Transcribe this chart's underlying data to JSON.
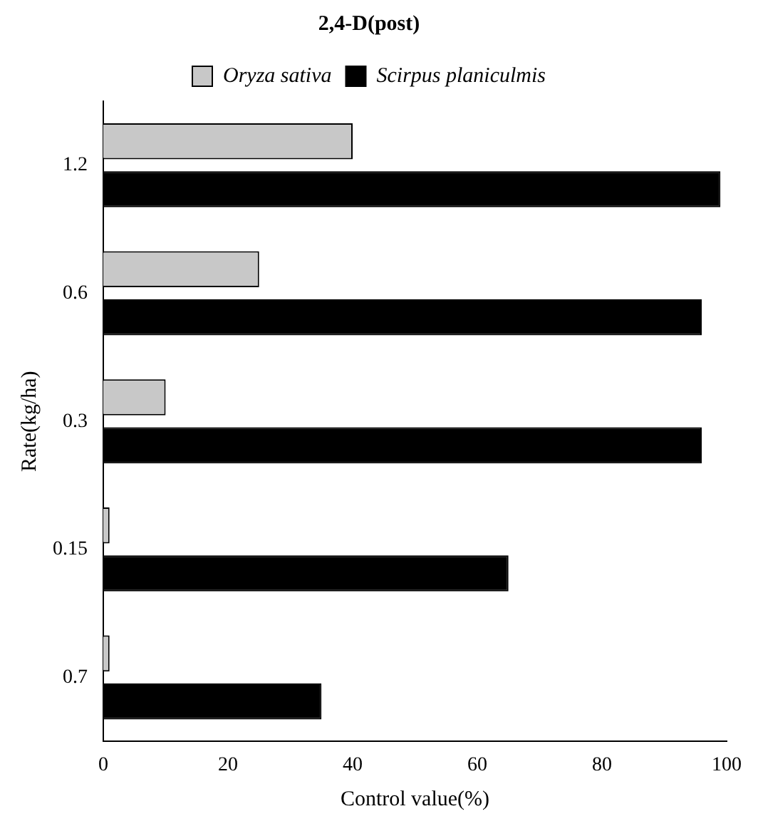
{
  "chart_data": {
    "type": "bar",
    "orientation": "horizontal",
    "title": "2,4-D(post)",
    "xlabel": "Control value(%)",
    "ylabel": "Rate(kg/ha)",
    "categories": [
      "1.2",
      "0.6",
      "0.3",
      "0.15",
      "0.7"
    ],
    "series": [
      {
        "name": "Oryza sativa",
        "color": "#c8c8c8",
        "values": [
          40,
          25,
          10,
          1,
          1
        ]
      },
      {
        "name": "Scirpus planiculmis",
        "color": "#000000",
        "values": [
          99,
          96,
          96,
          65,
          35
        ]
      }
    ],
    "xlim": [
      0,
      100
    ],
    "xticks": [
      0,
      20,
      40,
      60,
      80,
      100
    ],
    "grid": false,
    "legend": "top"
  }
}
